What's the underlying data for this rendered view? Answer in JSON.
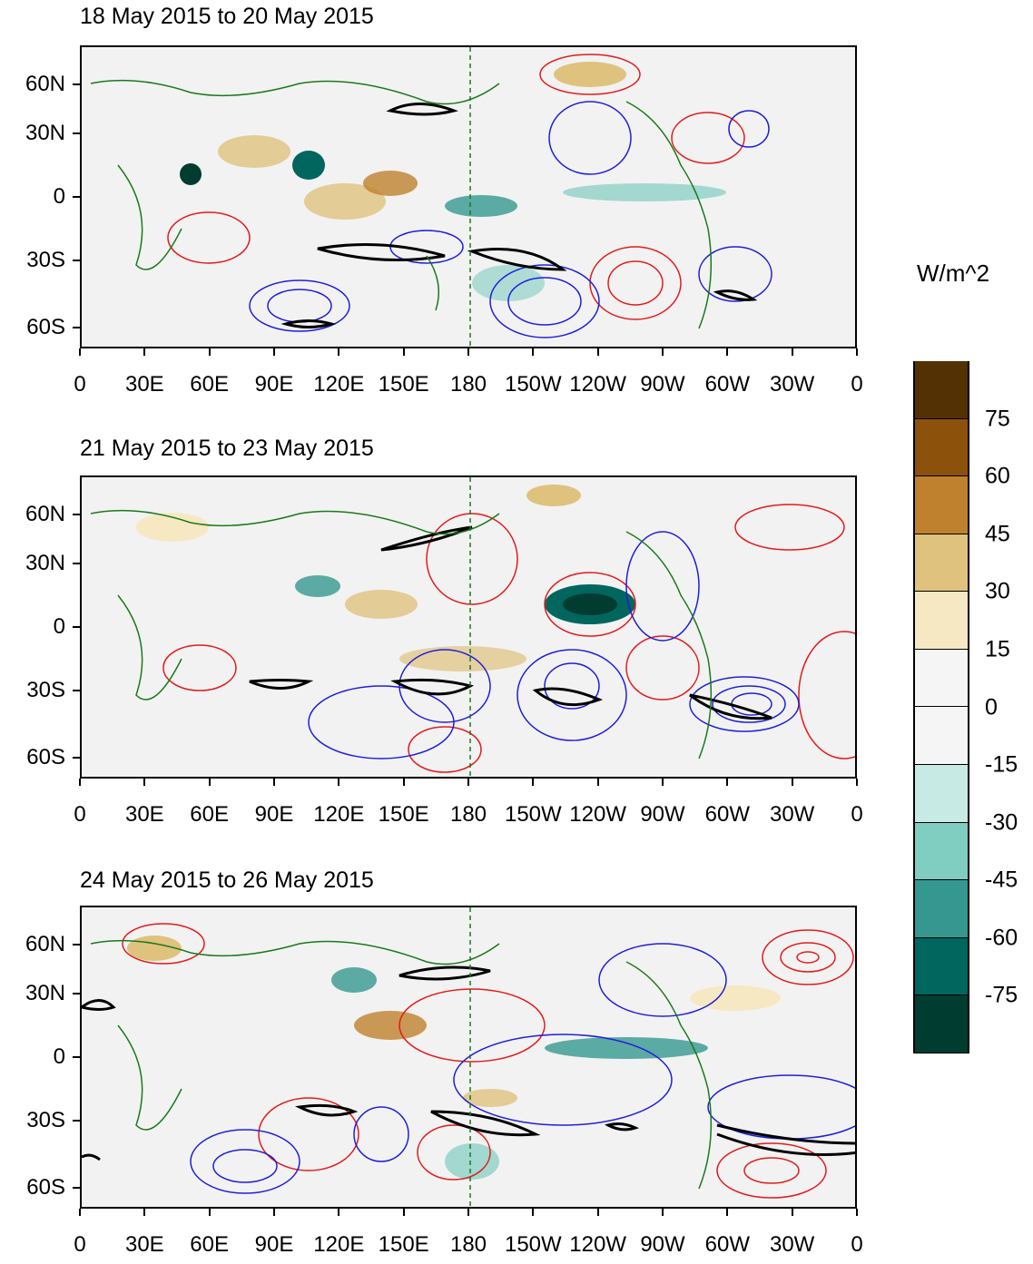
{
  "panels": [
    {
      "title": "18 May 2015 to 20 May 2015"
    },
    {
      "title": "21 May 2015 to 23 May 2015"
    },
    {
      "title": "24 May 2015 to 26 May 2015"
    }
  ],
  "lat_labels": [
    "60N",
    "30N",
    "0",
    "30S",
    "60S"
  ],
  "lon_labels": [
    "0",
    "30E",
    "60E",
    "90E",
    "120E",
    "150E",
    "180",
    "150W",
    "120W",
    "90W",
    "60W",
    "30W",
    "0"
  ],
  "colorbar": {
    "units": "W/m^2",
    "labels": [
      "75",
      "60",
      "45",
      "30",
      "15",
      "0",
      "-15",
      "-30",
      "-45",
      "-60",
      "-75"
    ],
    "colors": [
      "#543005",
      "#8c510a",
      "#bf812d",
      "#dfc27d",
      "#f6e8c3",
      "#f5f5f5",
      "#f5f5f5",
      "#c7eae5",
      "#80cdc1",
      "#35978f",
      "#01665e",
      "#003c30"
    ]
  },
  "contour_colors": {
    "positive": "#e41a1c",
    "negative": "#1f1fdd",
    "highlight": "#000000",
    "coast": "#1a7a1a"
  }
}
